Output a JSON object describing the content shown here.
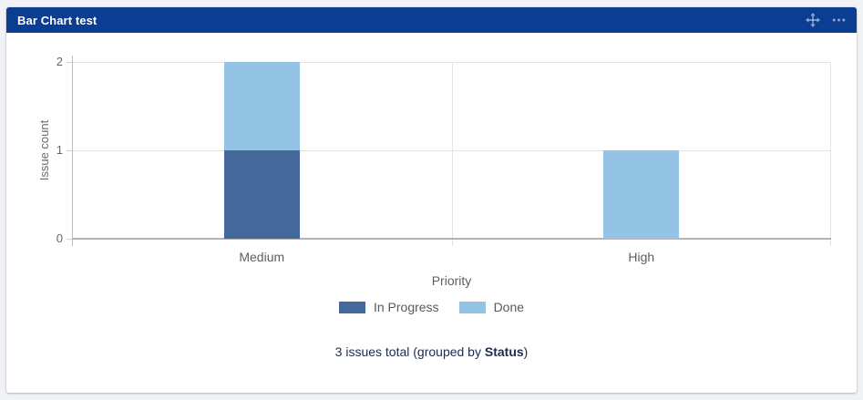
{
  "header": {
    "title": "Bar Chart test",
    "move_icon": "move-icon",
    "more_icon": "more-menu-icon"
  },
  "chart_data": {
    "type": "bar",
    "stacked": true,
    "title": "Bar Chart test",
    "categories": [
      "Medium",
      "High"
    ],
    "series": [
      {
        "name": "In Progress",
        "color": "#45689B",
        "values": [
          1,
          0
        ]
      },
      {
        "name": "Done",
        "color": "#94C4E4",
        "values": [
          1,
          1
        ]
      }
    ],
    "xlabel": "Priority",
    "ylabel": "Issue count",
    "yticks": [
      0,
      1,
      2
    ],
    "ylim": [
      0,
      2
    ],
    "grid": true,
    "legend_position": "bottom"
  },
  "footer": {
    "prefix": "3 issues total (grouped by ",
    "bold": "Status",
    "suffix": ")"
  },
  "colors": {
    "header_bg": "#0B3E93",
    "header_text": "#FFFFFF",
    "header_icon": "rgba(255,255,255,0.55)",
    "in_progress": "#45689B",
    "done": "#94C4E4",
    "gridline": "#E4E4E4",
    "axis_line": "#B3B3B3",
    "axis_text": "#666666",
    "footer_text": "#1C2B50"
  }
}
